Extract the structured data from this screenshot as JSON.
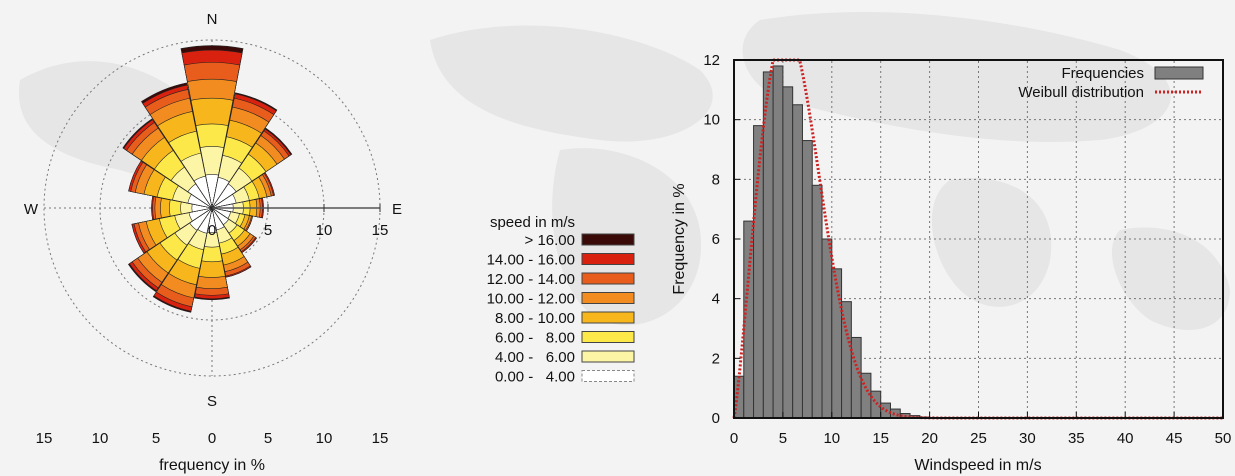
{
  "chart_data": [
    {
      "type": "wind-rose",
      "directions": [
        "N",
        "NNE",
        "NE",
        "ENE",
        "E",
        "ESE",
        "SE",
        "SSE",
        "S",
        "SSW",
        "SW",
        "WSW",
        "W",
        "WNW",
        "NW",
        "NNW"
      ],
      "compass_labels": {
        "north": "N",
        "east": "E",
        "south": "S",
        "west": "W"
      },
      "speed_classes": [
        "0.00 -   4.00",
        "4.00 -   6.00",
        "6.00 -   8.00",
        "8.00 - 10.00",
        "10.00 - 12.00",
        "12.00 - 14.00",
        "14.00 - 16.00",
        "> 16.00"
      ],
      "speed_colors": [
        "#ffffff",
        "#fdf5a6",
        "#fde84a",
        "#f7b71c",
        "#f38c20",
        "#e85d1c",
        "#d8210f",
        "#3a0a08"
      ],
      "legend_title": "speed in m/s",
      "cumulative_freq_percent": [
        [
          3.0,
          5.5,
          7.5,
          9.8,
          11.5,
          13.0,
          14.1,
          14.5
        ],
        [
          2.8,
          4.8,
          6.5,
          8.0,
          9.2,
          10.0,
          10.4,
          10.5
        ],
        [
          2.6,
          4.3,
          5.8,
          7.0,
          7.8,
          8.3,
          8.5,
          8.6
        ],
        [
          2.2,
          3.4,
          4.3,
          5.0,
          5.4,
          5.6,
          5.7,
          5.7
        ],
        [
          1.9,
          2.8,
          3.4,
          4.0,
          4.3,
          4.5,
          4.6,
          4.6
        ],
        [
          1.7,
          2.5,
          3.0,
          3.4,
          3.6,
          3.7,
          3.7,
          3.7
        ],
        [
          1.8,
          2.7,
          3.5,
          4.1,
          4.5,
          4.7,
          4.8,
          4.8
        ],
        [
          2.0,
          3.2,
          4.2,
          5.2,
          5.8,
          6.2,
          6.3,
          6.3
        ],
        [
          2.2,
          3.5,
          4.8,
          6.2,
          7.2,
          7.8,
          8.1,
          8.2
        ],
        [
          2.3,
          3.8,
          5.5,
          7.0,
          8.2,
          9.0,
          9.4,
          9.5
        ],
        [
          2.4,
          4.0,
          5.6,
          7.0,
          8.0,
          8.6,
          8.9,
          9.0
        ],
        [
          2.1,
          3.4,
          4.8,
          6.0,
          6.7,
          7.1,
          7.3,
          7.3
        ],
        [
          1.8,
          2.8,
          3.8,
          4.6,
          5.1,
          5.3,
          5.4,
          5.4
        ],
        [
          2.2,
          3.6,
          5.0,
          6.2,
          7.0,
          7.4,
          7.6,
          7.6
        ],
        [
          2.6,
          4.4,
          6.2,
          7.6,
          8.6,
          9.2,
          9.5,
          9.6
        ],
        [
          2.9,
          5.0,
          7.0,
          8.8,
          10.0,
          10.8,
          11.2,
          11.4
        ]
      ],
      "radial_axis_labels": [
        "0",
        "5",
        "10",
        "15"
      ],
      "bottom_ticks": [
        "15",
        "10",
        "5",
        "0",
        "5",
        "10",
        "15"
      ],
      "xlabel": "frequency in %",
      "rmax": 15
    },
    {
      "type": "bar",
      "x": [
        0.5,
        1.5,
        2.5,
        3.5,
        4.5,
        5.5,
        6.5,
        7.5,
        8.5,
        9.5,
        10.5,
        11.5,
        12.5,
        13.5,
        14.5,
        15.5,
        16.5,
        17.5,
        18.5,
        19.5
      ],
      "series": [
        {
          "name": "Frequencies",
          "values": [
            1.4,
            6.6,
            9.8,
            11.6,
            11.8,
            11.1,
            10.5,
            9.3,
            7.8,
            6.0,
            5.0,
            3.9,
            2.7,
            1.5,
            0.9,
            0.5,
            0.3,
            0.15,
            0.08,
            0.03
          ],
          "color": "#808080"
        },
        {
          "name": "Weibull distribution",
          "type": "line",
          "color": "#cc2222"
        }
      ],
      "weibull": {
        "shape": 2.2,
        "scale": 7.0
      },
      "xlabel": "Windspeed in m/s",
      "ylabel": "Frequency in %",
      "xlim": [
        0,
        50
      ],
      "ylim": [
        0,
        12
      ],
      "xticks": [
        "0",
        "5",
        "10",
        "15",
        "20",
        "25",
        "30",
        "35",
        "40",
        "45",
        "50"
      ],
      "yticks": [
        "0",
        "2",
        "4",
        "6",
        "8",
        "10",
        "12"
      ],
      "grid": true,
      "legend_position": "top-right"
    }
  ]
}
